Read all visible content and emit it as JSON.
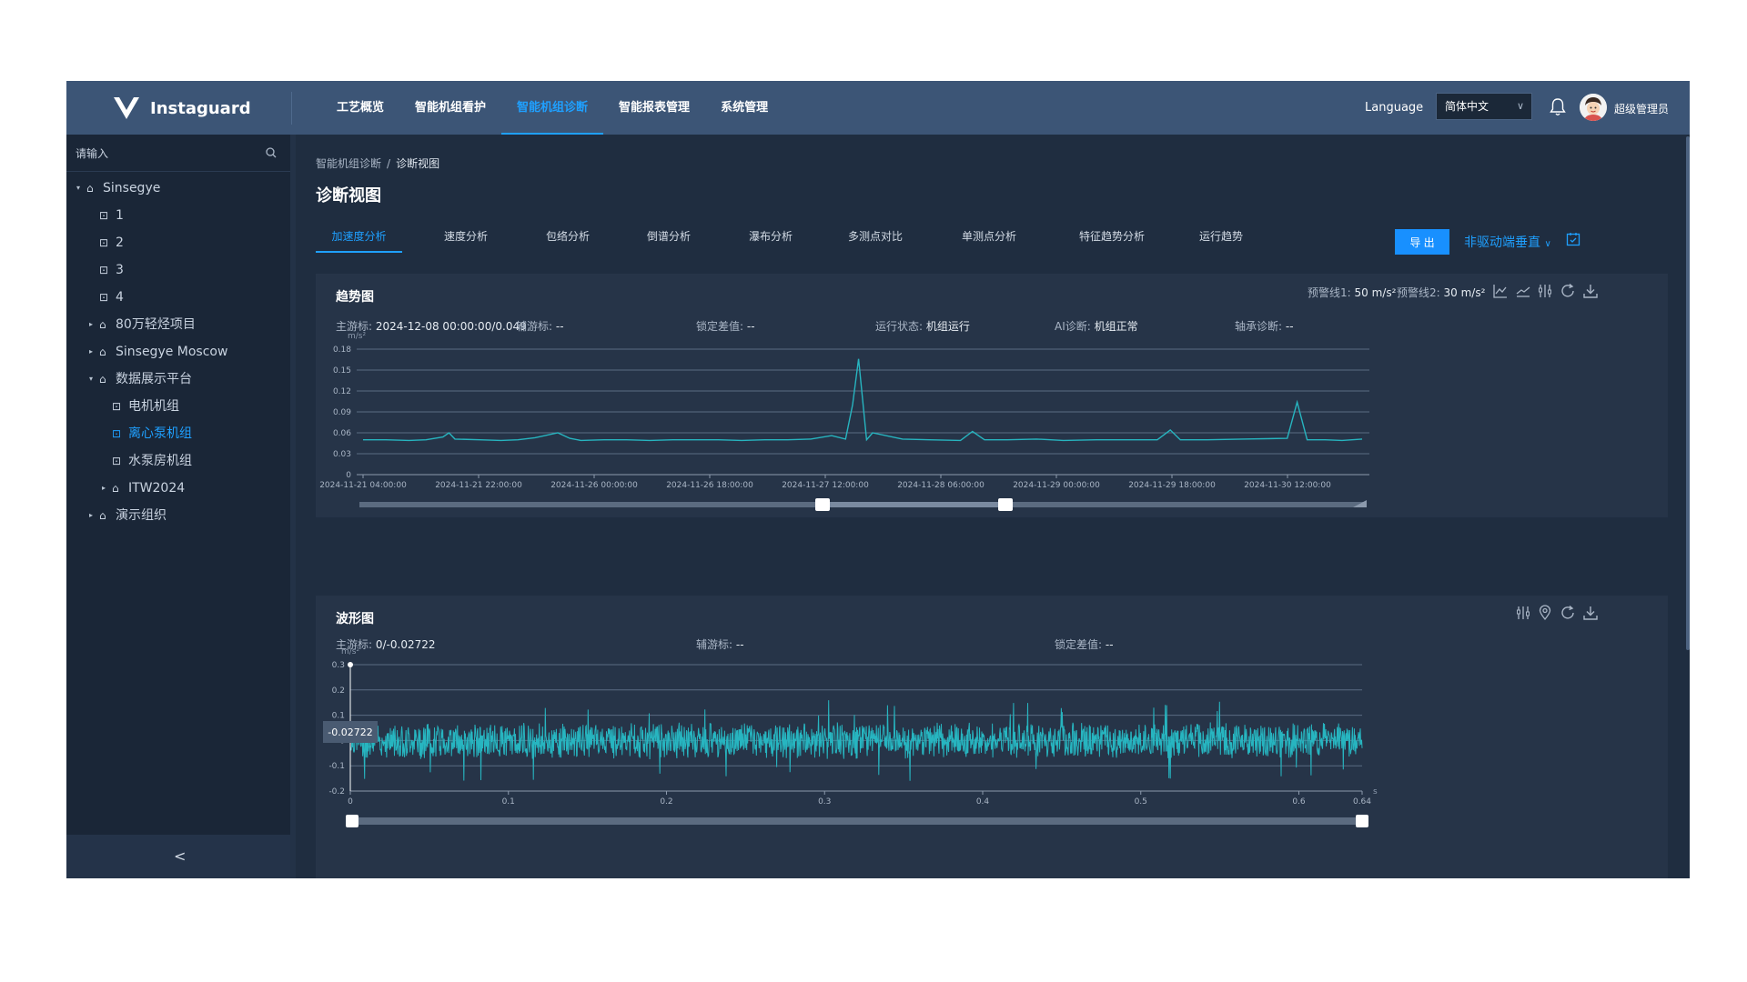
{
  "app": {
    "name": "Instaguard"
  },
  "nav": {
    "items": [
      "工艺概览",
      "智能机组看护",
      "智能机组诊断",
      "智能报表管理",
      "系统管理"
    ],
    "active_index": 2
  },
  "header": {
    "language_label": "Language",
    "language_value": "简体中文",
    "user_name": "超级管理员"
  },
  "sidebar": {
    "search_placeholder": "请输入",
    "tree": [
      {
        "label": "Sinsegye",
        "level": 0,
        "expander": "expanded",
        "icon": "bank-icon"
      },
      {
        "label": "1",
        "level": 1,
        "expander": "none",
        "icon": "device-icon"
      },
      {
        "label": "2",
        "level": 1,
        "expander": "none",
        "icon": "device-icon"
      },
      {
        "label": "3",
        "level": 1,
        "expander": "none",
        "icon": "device-icon"
      },
      {
        "label": "4",
        "level": 1,
        "expander": "none",
        "icon": "device-icon"
      },
      {
        "label": "80万轻烃项目",
        "level": 1,
        "expander": "collapsed",
        "icon": "bank-icon"
      },
      {
        "label": "Sinsegye Moscow",
        "level": 1,
        "expander": "collapsed",
        "icon": "bank-icon"
      },
      {
        "label": "数据展示平台",
        "level": 1,
        "expander": "expanded",
        "icon": "bank-icon"
      },
      {
        "label": "电机机组",
        "level": 2,
        "expander": "none",
        "icon": "device-icon"
      },
      {
        "label": "离心泵机组",
        "level": 2,
        "expander": "none",
        "icon": "device-icon",
        "active": true
      },
      {
        "label": "水泵房机组",
        "level": 2,
        "expander": "none",
        "icon": "device-icon"
      },
      {
        "label": "ITW2024",
        "level": 2,
        "expander": "collapsed",
        "icon": "bank-icon"
      },
      {
        "label": "演示组织",
        "level": 1,
        "expander": "collapsed",
        "icon": "bank-icon"
      }
    ],
    "collapse_glyph": "<"
  },
  "breadcrumb": {
    "parent": "智能机组诊断",
    "separator": "/",
    "current": "诊断视图"
  },
  "page_title": "诊断视图",
  "tabs": [
    "加速度分析",
    "速度分析",
    "包络分析",
    "倒谱分析",
    "瀑布分析",
    "多测点对比",
    "单测点分析",
    "特征趋势分析",
    "运行趋势"
  ],
  "active_tab": 0,
  "toolbar": {
    "export_label": "导 出",
    "view_label": "非驱动端垂直"
  },
  "trend_panel": {
    "title": "趋势图",
    "threshold1_label": "预警线1:",
    "threshold1_value": "50 m/s²",
    "threshold2_label": "预警线2:",
    "threshold2_value": "30 m/s²",
    "main_cursor_label": "主游标:",
    "main_cursor_value": "2024-12-08 00:00:00/0.049",
    "aux_cursor_label": "辅游标:",
    "aux_cursor_value": "--",
    "lock_diff_label": "锁定差值:",
    "lock_diff_value": "--",
    "run_state_label": "运行状态:",
    "run_state_value": "机组运行",
    "ai_diag_label": "AI诊断:",
    "ai_diag_value": "机组正常",
    "bearing_diag_label": "轴承诊断:",
    "bearing_diag_value": "--",
    "tools": [
      "line-chart-icon",
      "trend-line-icon",
      "sliders-icon",
      "refresh-icon",
      "download-icon"
    ]
  },
  "wave_panel": {
    "title": "波形图",
    "main_cursor_label": "主游标:",
    "main_cursor_value": "0/-0.02722",
    "aux_cursor_label": "辅游标:",
    "aux_cursor_value": "--",
    "lock_diff_label": "锁定差值:",
    "lock_diff_value": "--",
    "tooltip_value": "-0.02722",
    "tools": [
      "sliders-icon",
      "location-pin-icon",
      "refresh-icon",
      "download-icon"
    ]
  },
  "chart_data": [
    {
      "type": "line",
      "title": "趋势图",
      "ylabel": "m/s²",
      "ylim": [
        0,
        0.18
      ],
      "yticks": [
        0,
        0.03,
        0.06,
        0.09,
        0.12,
        0.15,
        0.18
      ],
      "x_tick_labels": [
        "2024-11-21 04:00:00",
        "2024-11-21 22:00:00",
        "2024-11-26 00:00:00",
        "2024-11-26 18:00:00",
        "2024-11-27 12:00:00",
        "2024-11-28 06:00:00",
        "2024-11-29 00:00:00",
        "2024-11-29 18:00:00",
        "2024-11-30 12:00:00"
      ],
      "series": [
        {
          "color": "#27b5c0",
          "x": [
            0.0,
            0.023,
            0.046,
            0.063,
            0.08,
            0.086,
            0.092,
            0.117,
            0.138,
            0.155,
            0.172,
            0.195,
            0.207,
            0.218,
            0.241,
            0.264,
            0.287,
            0.31,
            0.333,
            0.356,
            0.379,
            0.402,
            0.425,
            0.448,
            0.469,
            0.483,
            0.49,
            0.496,
            0.504,
            0.51,
            0.54,
            0.567,
            0.598,
            0.61,
            0.622,
            0.645,
            0.674,
            0.701,
            0.734,
            0.767,
            0.795,
            0.808,
            0.818,
            0.845,
            0.88,
            0.925,
            0.935,
            0.945,
            0.963,
            0.98,
            1.0
          ],
          "values": [
            0.05,
            0.05,
            0.049,
            0.05,
            0.054,
            0.06,
            0.051,
            0.05,
            0.049,
            0.05,
            0.053,
            0.06,
            0.052,
            0.049,
            0.05,
            0.05,
            0.049,
            0.05,
            0.05,
            0.05,
            0.049,
            0.05,
            0.05,
            0.051,
            0.056,
            0.051,
            0.1,
            0.166,
            0.05,
            0.06,
            0.051,
            0.05,
            0.049,
            0.062,
            0.05,
            0.05,
            0.051,
            0.049,
            0.05,
            0.05,
            0.05,
            0.064,
            0.05,
            0.05,
            0.051,
            0.052,
            0.104,
            0.05,
            0.05,
            0.049,
            0.051
          ]
        }
      ],
      "grid": true
    },
    {
      "type": "line",
      "title": "波形图",
      "ylabel": "m/s²",
      "xlabel": "s",
      "xlim": [
        0,
        0.64
      ],
      "ylim": [
        -0.2,
        0.3
      ],
      "yticks": [
        -0.2,
        -0.1,
        0,
        0.1,
        0.2,
        0.3
      ],
      "xticks": [
        0,
        0.1,
        0.2,
        0.3,
        0.4,
        0.5,
        0.6,
        0.64
      ],
      "series": [
        {
          "color": "#27b5c0",
          "description_points": {
            "x": [
              0.0
            ],
            "values": [
              -0.02722
            ]
          },
          "amplitude_typical": 0.06,
          "amplitude_max": 0.16
        }
      ],
      "grid": true
    }
  ],
  "colors": {
    "accent": "#1fa0ff",
    "series": "#27b5c0",
    "topbar": "#3c5576",
    "background": "#1f2d40",
    "panel": "#263448"
  }
}
